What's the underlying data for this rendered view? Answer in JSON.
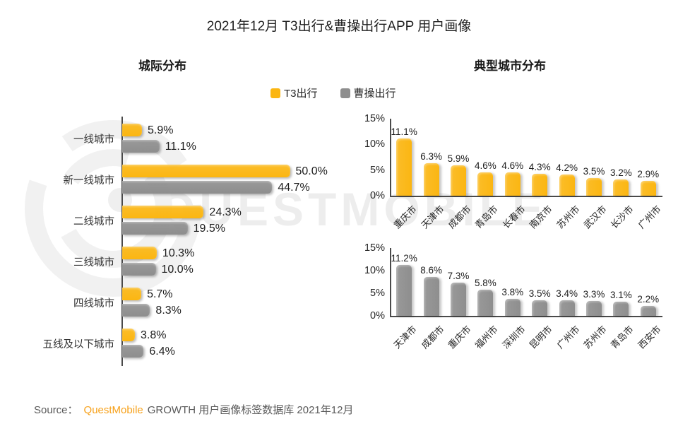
{
  "title": "2021年12月 T3出行&曹操出行APP 用户画像",
  "sections": {
    "left_title": "城际分布",
    "right_title": "典型城市分布"
  },
  "legend": {
    "items": [
      {
        "label": "T3出行",
        "color": "#FBB612"
      },
      {
        "label": "曹操出行",
        "color": "#8E8E8E"
      }
    ]
  },
  "colors": {
    "t3_yellow": "#FBB612",
    "caocao_gray": "#8E8E8E",
    "axis": "#4A4A4A",
    "text_dark": "#262626",
    "source_gray": "#595959",
    "brand_orange": "#F7A11A",
    "watermark_gray": "#EDEDED"
  },
  "chart_data": [
    {
      "type": "bar",
      "orientation": "horizontal",
      "title": "城际分布",
      "unit": "%",
      "categories": [
        "一线城市",
        "新一线城市",
        "二线城市",
        "三线城市",
        "四线城市",
        "五线及以下城市"
      ],
      "series": [
        {
          "name": "T3出行",
          "values": [
            5.9,
            50.0,
            24.3,
            10.3,
            5.7,
            3.8
          ]
        },
        {
          "name": "曹操出行",
          "values": [
            11.1,
            44.7,
            19.5,
            10.0,
            8.3,
            6.4
          ]
        }
      ],
      "xlim": [
        0,
        55
      ],
      "data_labels": true,
      "grid": false,
      "legend_position": "top-center"
    },
    {
      "type": "bar",
      "orientation": "vertical",
      "title": "典型城市分布 - T3出行",
      "series_name": "T3出行",
      "unit": "%",
      "categories": [
        "重庆市",
        "天津市",
        "成都市",
        "青岛市",
        "长春市",
        "南京市",
        "苏州市",
        "武汉市",
        "长沙市",
        "广州市"
      ],
      "values": [
        11.1,
        6.3,
        5.9,
        4.6,
        4.6,
        4.3,
        4.2,
        3.5,
        3.2,
        2.9
      ],
      "ylim": [
        0,
        15
      ],
      "yticks": [
        "15%",
        "10%",
        "5%",
        "0%"
      ],
      "data_labels": true,
      "grid": false
    },
    {
      "type": "bar",
      "orientation": "vertical",
      "title": "典型城市分布 - 曹操出行",
      "series_name": "曹操出行",
      "unit": "%",
      "categories": [
        "天津市",
        "成都市",
        "重庆市",
        "福州市",
        "深圳市",
        "昆明市",
        "广州市",
        "苏州市",
        "青岛市",
        "西安市"
      ],
      "values": [
        11.2,
        8.6,
        7.3,
        5.8,
        3.8,
        3.5,
        3.4,
        3.3,
        3.1,
        2.2
      ],
      "ylim": [
        0,
        15
      ],
      "yticks": [
        "15%",
        "10%",
        "5%",
        "0%"
      ],
      "data_labels": true,
      "grid": false
    }
  ],
  "source": {
    "prefix": "Source：",
    "brand": "QuestMobile",
    "suffix": "GROWTH 用户画像标签数据库 2021年12月"
  },
  "watermark": {
    "text": "QUESTMOBILE"
  }
}
